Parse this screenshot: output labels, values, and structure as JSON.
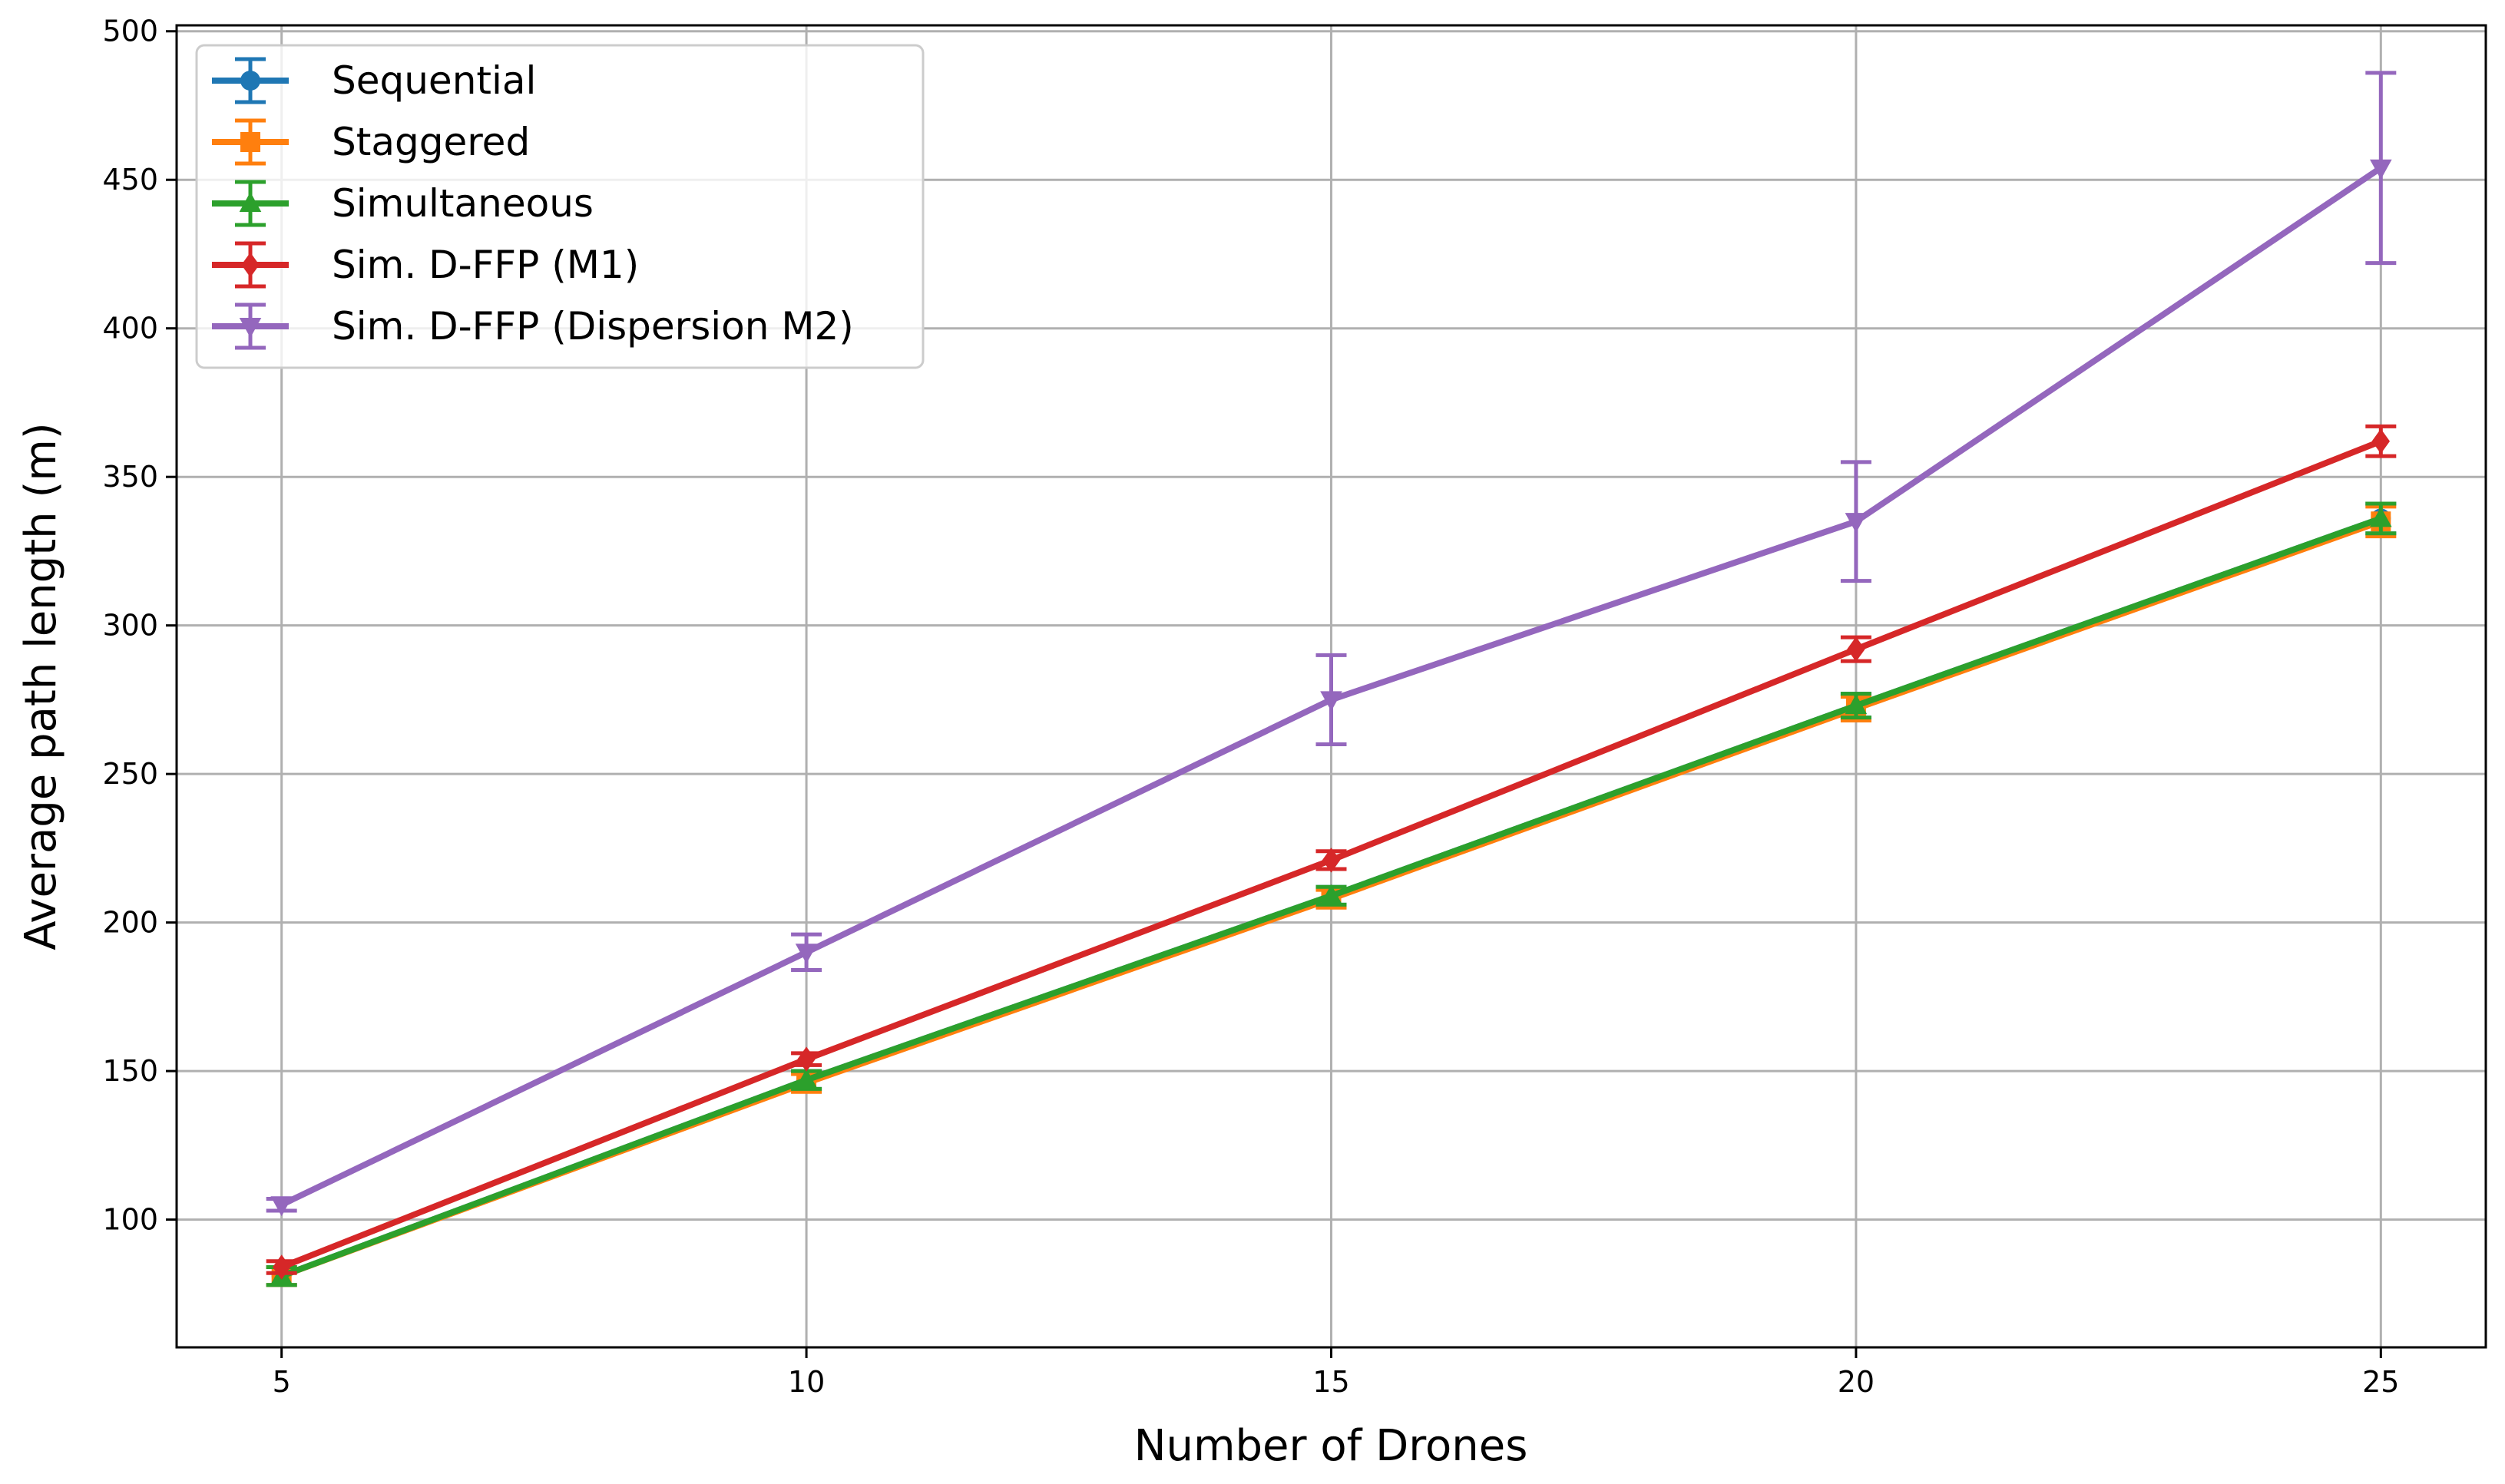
{
  "chart_data": {
    "type": "line",
    "title": "",
    "xlabel": "Number of Drones",
    "ylabel": "Average path length (m)",
    "x": [
      5,
      10,
      15,
      20,
      25
    ],
    "xlim": [
      4,
      26
    ],
    "ylim": [
      57,
      502
    ],
    "xticks": [
      5,
      10,
      15,
      20,
      25
    ],
    "yticks": [
      100,
      150,
      200,
      250,
      300,
      350,
      400,
      450,
      500
    ],
    "grid": true,
    "legend_position": "top-left",
    "series": [
      {
        "name": "Sequential",
        "color": "#1f77b4",
        "marker": "circle",
        "values": [
          81,
          147,
          209,
          273,
          336
        ],
        "errors": [
          3,
          3,
          3,
          4,
          5
        ]
      },
      {
        "name": "Staggered",
        "color": "#ff7f0e",
        "marker": "square",
        "values": [
          81,
          146,
          208,
          272,
          335
        ],
        "errors": [
          3,
          3,
          3,
          4,
          5
        ]
      },
      {
        "name": "Simultaneous",
        "color": "#2ca02c",
        "marker": "triangle-up",
        "values": [
          81,
          147,
          209,
          273,
          336
        ],
        "errors": [
          3,
          3,
          3,
          4,
          5
        ]
      },
      {
        "name": "Sim. D-FFP (M1)",
        "color": "#d62728",
        "marker": "diamond",
        "values": [
          84,
          154,
          221,
          292,
          362
        ],
        "errors": [
          2,
          2,
          3,
          4,
          5
        ]
      },
      {
        "name": "Sim. D-FFP (Dispersion M2)",
        "color": "#9467bd",
        "marker": "triangle-down",
        "values": [
          105,
          190,
          275,
          335,
          454
        ],
        "errors": [
          2,
          6,
          15,
          20,
          32
        ]
      }
    ]
  }
}
